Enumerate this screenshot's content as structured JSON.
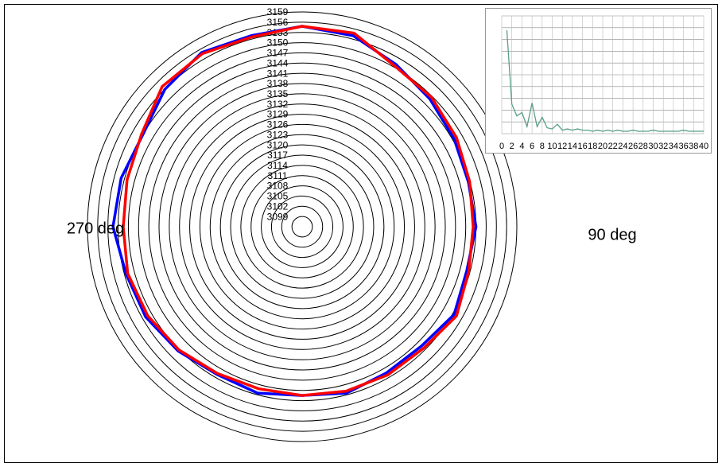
{
  "chart_data": [
    {
      "type": "polar",
      "theta": [
        0,
        15,
        30,
        45,
        60,
        75,
        90,
        105,
        120,
        135,
        150,
        165,
        180,
        195,
        210,
        225,
        240,
        255,
        270,
        285,
        300,
        315,
        330,
        345
      ],
      "series": [
        {
          "color": "#0000ff",
          "values": [
            3154.8,
            3154.0,
            3151.0,
            3149.0,
            3147.5,
            3146.5,
            3147.0,
            3146.0,
            3147.5,
            3145.5,
            3145.5,
            3146.5,
            3145.5,
            3146.5,
            3146.0,
            3147.5,
            3149.0,
            3149.5,
            3151.5,
            3151.0,
            3150.0,
            3153.0,
            3155.0,
            3154.0
          ]
        },
        {
          "color": "#ff0000",
          "values": [
            3154.8,
            3154.8,
            3150.4,
            3149.7,
            3148.3,
            3146.9,
            3146.2,
            3146.6,
            3148.3,
            3146.4,
            3146.2,
            3145.9,
            3145.5,
            3145.2,
            3145.7,
            3147.1,
            3148.3,
            3149.0,
            3148.5,
            3149.2,
            3150.4,
            3154.1,
            3154.6,
            3153.6
          ]
        }
      ],
      "rlim": [
        3096,
        3159
      ],
      "rticks": [
        3099,
        3102,
        3105,
        3108,
        3111,
        3114,
        3117,
        3120,
        3123,
        3126,
        3129,
        3132,
        3135,
        3138,
        3141,
        3144,
        3147,
        3150,
        3153,
        3156,
        3159
      ],
      "annotations": [
        "270 deg",
        "90 deg"
      ]
    },
    {
      "type": "line",
      "x": [
        1,
        2,
        3,
        4,
        5,
        6,
        7,
        8,
        9,
        10,
        11,
        12,
        13,
        14,
        15,
        16,
        17,
        18,
        19,
        20,
        21,
        22,
        23,
        24,
        25,
        26,
        27,
        28,
        29,
        30,
        31,
        32,
        33,
        34,
        35,
        36,
        37,
        38,
        39,
        40
      ],
      "series": [
        {
          "color": "#5a9e87",
          "values": [
            8.8,
            2.5,
            1.5,
            1.8,
            0.6,
            2.6,
            0.6,
            1.4,
            0.5,
            0.4,
            0.8,
            0.3,
            0.4,
            0.3,
            0.4,
            0.3,
            0.3,
            0.2,
            0.3,
            0.2,
            0.3,
            0.2,
            0.3,
            0.2,
            0.2,
            0.3,
            0.2,
            0.2,
            0.2,
            0.3,
            0.2,
            0.2,
            0.2,
            0.2,
            0.2,
            0.3,
            0.2,
            0.2,
            0.2,
            0.2
          ]
        }
      ],
      "xlim": [
        0,
        40
      ],
      "xticks": [
        0,
        2,
        4,
        6,
        8,
        10,
        12,
        14,
        16,
        18,
        20,
        22,
        24,
        26,
        28,
        30,
        32,
        34,
        36,
        38,
        40
      ],
      "ylim": [
        0,
        10
      ],
      "yticks": [
        0,
        1,
        2,
        3,
        4,
        5,
        6,
        7,
        8,
        9,
        10
      ],
      "grid": true
    }
  ]
}
